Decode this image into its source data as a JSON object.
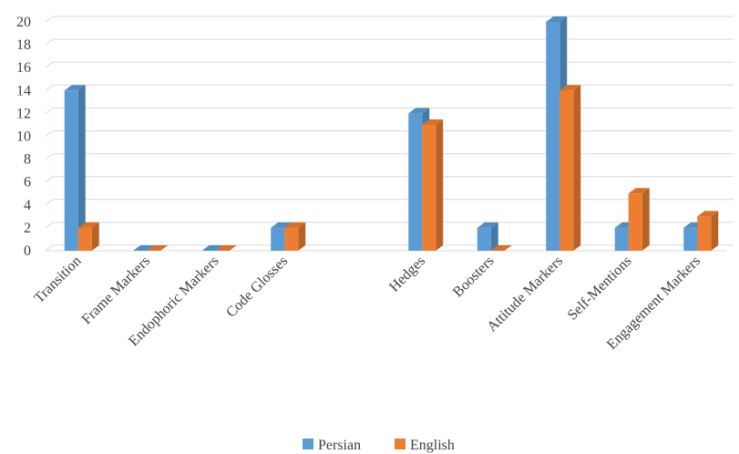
{
  "chart_data": {
    "type": "bar",
    "style": "3d-clustered-column",
    "categories": [
      "Transition",
      "Frame Markers",
      "Endophoric Markers",
      "Code Glosses",
      "",
      "Hedges",
      "Boosters",
      "Attitude Markers",
      "Self-Mentions",
      "Engagement Markers"
    ],
    "series": [
      {
        "name": "Persian",
        "color": "#5B9BD5",
        "values": [
          14,
          0,
          0,
          2,
          null,
          12,
          2,
          20,
          2,
          2
        ]
      },
      {
        "name": "English",
        "color": "#ED7D31",
        "values": [
          2,
          0,
          0,
          2,
          null,
          11,
          0,
          14,
          5,
          3
        ]
      }
    ],
    "yticks": [
      0,
      2,
      4,
      6,
      8,
      10,
      12,
      14,
      16,
      18,
      20
    ],
    "ylim": [
      0,
      20
    ],
    "grid": true,
    "legend_position": "bottom",
    "title": "",
    "xlabel": "",
    "ylabel": ""
  }
}
